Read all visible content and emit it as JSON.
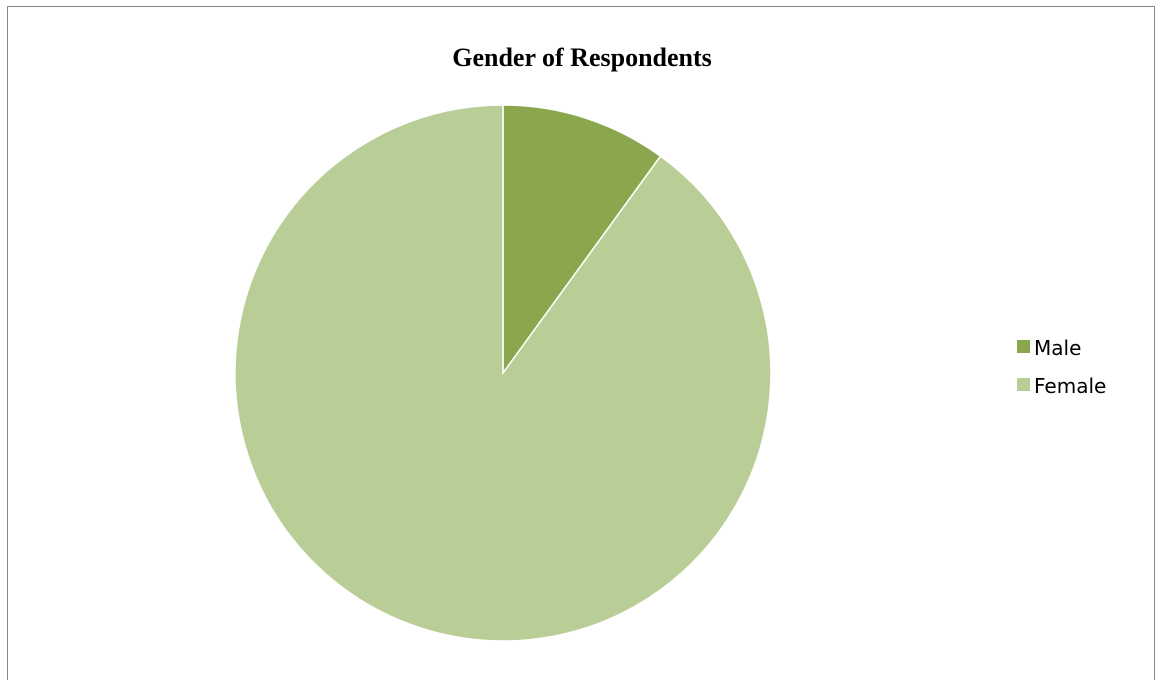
{
  "chart_data": {
    "type": "pie",
    "title": "Gender of Respondents",
    "categories": [
      "Male",
      "Female"
    ],
    "values": [
      10,
      90
    ],
    "colors": [
      "#8BA74E",
      "#B9CE97"
    ],
    "legend_position": "right"
  }
}
